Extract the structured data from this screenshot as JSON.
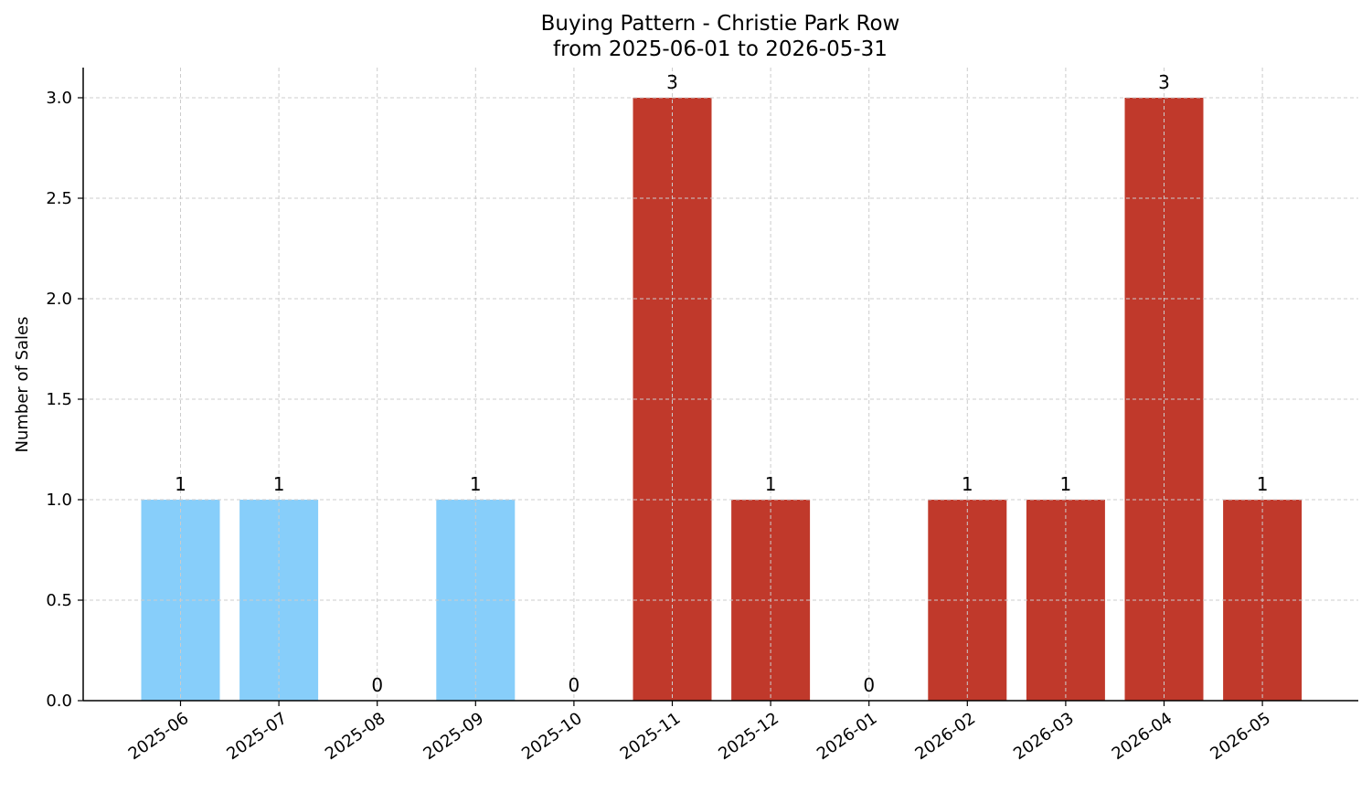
{
  "chart_data": {
    "type": "bar",
    "title": "Buying Pattern - Christie Park Row",
    "subtitle": "from 2025-06-01 to 2026-05-31",
    "xlabel": "",
    "ylabel": "Number of Sales",
    "categories": [
      "2025-06",
      "2025-07",
      "2025-08",
      "2025-09",
      "2025-10",
      "2025-11",
      "2025-12",
      "2026-01",
      "2026-02",
      "2026-03",
      "2026-04",
      "2026-05"
    ],
    "values": [
      1,
      1,
      0,
      1,
      0,
      3,
      1,
      0,
      1,
      1,
      3,
      1
    ],
    "data_labels": [
      "1",
      "1",
      "0",
      "1",
      "0",
      "3",
      "1",
      "0",
      "1",
      "1",
      "3",
      "1"
    ],
    "bar_colors": [
      "#87cefa",
      "#87cefa",
      "#87cefa",
      "#87cefa",
      "#87cefa",
      "#c0392b",
      "#c0392b",
      "#c0392b",
      "#c0392b",
      "#c0392b",
      "#c0392b",
      "#c0392b"
    ],
    "ylim": [
      0,
      3.15
    ],
    "yticks": [
      0.0,
      0.5,
      1.0,
      1.5,
      2.0,
      2.5,
      3.0
    ],
    "ytick_labels": [
      "0.0",
      "0.5",
      "1.0",
      "1.5",
      "2.0",
      "2.5",
      "3.0"
    ],
    "grid": true,
    "x_tick_rotation_deg": 35
  }
}
